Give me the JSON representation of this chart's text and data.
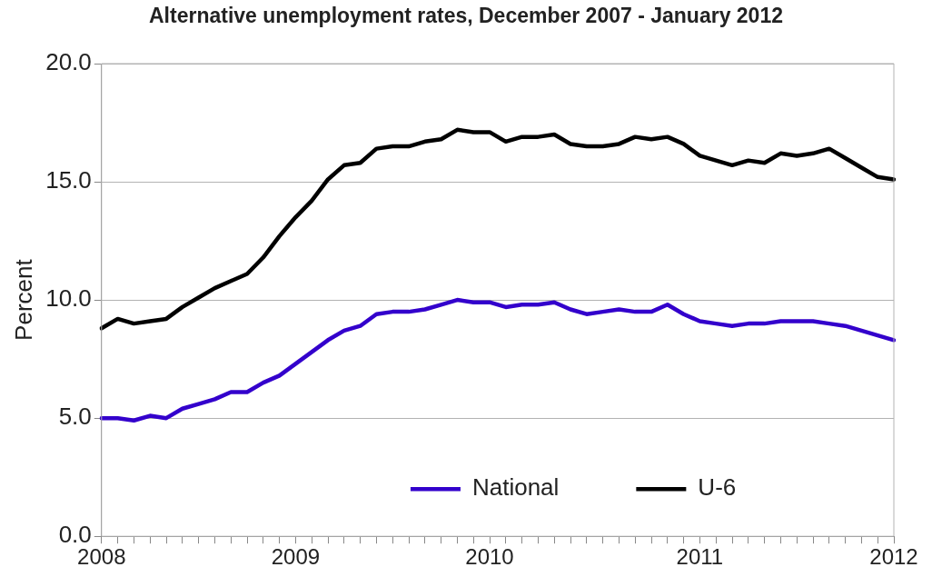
{
  "chart_data": {
    "type": "line",
    "title": "Alternative unemployment rates, December 2007 - January 2012",
    "ylabel": "Percent",
    "categories": [
      "2008",
      null,
      null,
      null,
      null,
      null,
      null,
      null,
      null,
      null,
      null,
      null,
      "2009",
      null,
      null,
      null,
      null,
      null,
      null,
      null,
      null,
      null,
      null,
      null,
      "2010",
      null,
      null,
      null,
      null,
      null,
      null,
      null,
      null,
      null,
      null,
      null,
      null,
      "2011",
      null,
      null,
      null,
      null,
      null,
      null,
      null,
      null,
      null,
      null,
      null,
      "2012"
    ],
    "series": [
      {
        "name": "National",
        "color": "#3300cc",
        "values": [
          5.0,
          5.0,
          4.9,
          5.1,
          5.0,
          5.4,
          5.6,
          5.8,
          6.1,
          6.1,
          6.5,
          6.8,
          7.3,
          7.8,
          8.3,
          8.7,
          8.9,
          9.4,
          9.5,
          9.5,
          9.6,
          9.8,
          10.0,
          9.9,
          9.9,
          9.7,
          9.8,
          9.8,
          9.9,
          9.6,
          9.4,
          9.5,
          9.6,
          9.5,
          9.5,
          9.8,
          9.4,
          9.1,
          9.0,
          8.9,
          9.0,
          9.0,
          9.1,
          9.1,
          9.1,
          9.0,
          8.9,
          8.7,
          8.5,
          8.3
        ]
      },
      {
        "name": "U-6",
        "color": "#000000",
        "values": [
          8.8,
          9.2,
          9.0,
          9.1,
          9.2,
          9.7,
          10.1,
          10.5,
          10.8,
          11.1,
          11.8,
          12.7,
          13.5,
          14.2,
          15.1,
          15.7,
          15.8,
          16.4,
          16.5,
          16.5,
          16.7,
          16.8,
          17.2,
          17.1,
          17.1,
          16.7,
          16.9,
          16.9,
          17.0,
          16.6,
          16.5,
          16.5,
          16.6,
          16.9,
          16.8,
          16.9,
          16.6,
          16.1,
          15.9,
          15.7,
          15.9,
          15.8,
          16.2,
          16.1,
          16.2,
          16.4,
          16.0,
          15.6,
          15.2,
          15.1
        ]
      }
    ],
    "ylim": [
      0,
      20
    ],
    "yticks": [
      {
        "value": 0,
        "label": "0.0"
      },
      {
        "value": 5,
        "label": "5.0"
      },
      {
        "value": 10,
        "label": "10.0"
      },
      {
        "value": 15,
        "label": "15.0"
      },
      {
        "value": 20,
        "label": "20.0"
      }
    ],
    "grid": "y",
    "legend": "bottom",
    "marker": "none",
    "line_style": "solid"
  }
}
